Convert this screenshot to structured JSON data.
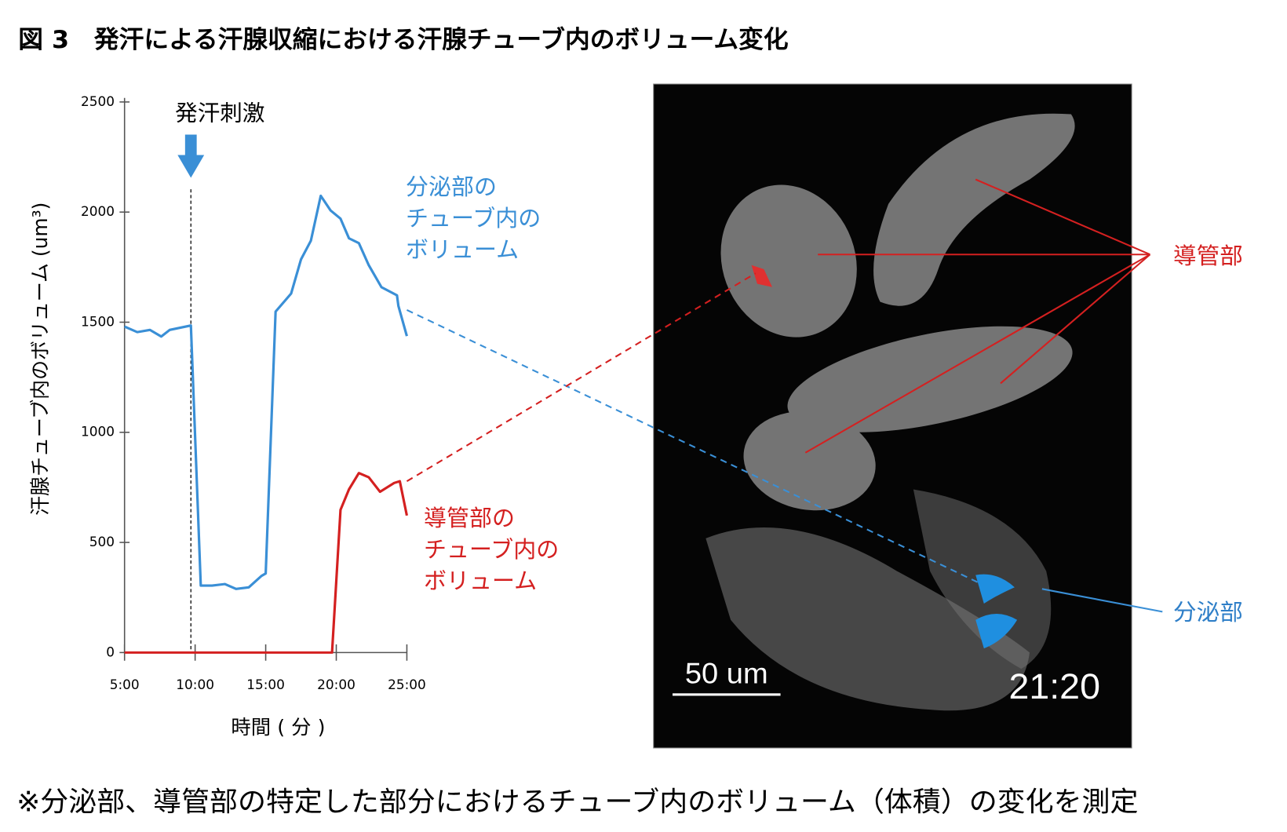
{
  "chart_data": {
    "type": "line",
    "title": "図 3　発汗による汗腺収縮における汗腺チューブ内のボリューム変化",
    "x_label": "時間 ( 分 )",
    "y_label": "汗腺チューブ内のボリューム (um³)",
    "xlim": [
      5,
      25
    ],
    "xticks": [
      {
        "value": 5,
        "label": "5:00"
      },
      {
        "value": 10,
        "label": "10:00"
      },
      {
        "value": 15,
        "label": "15:00"
      },
      {
        "value": 20,
        "label": "20:00"
      },
      {
        "value": 25,
        "label": "25:00"
      }
    ],
    "ylim": [
      0,
      2500
    ],
    "yticks": [
      0,
      500,
      1000,
      1500,
      2000,
      2500
    ],
    "annotation": {
      "text": "発汗刺激",
      "x": 9.7
    },
    "series": [
      {
        "name": "分泌部の\nチューブ内の\nボリューム",
        "color": "#3a8fd6",
        "x": [
          5,
          5.9,
          6.8,
          7.6,
          8.2,
          9.7,
          10.4,
          11.2,
          12.1,
          12.9,
          13.8,
          14.7,
          15,
          15.7,
          16.8,
          17.5,
          18.2,
          18.9,
          19.6,
          20.3,
          20.9,
          21.6,
          22.3,
          23.2,
          24.3,
          24.4,
          25
        ],
        "values": [
          1480,
          1455,
          1465,
          1435,
          1465,
          1485,
          304,
          304,
          311,
          289,
          296,
          348,
          359,
          1548,
          1630,
          1785,
          1870,
          2074,
          2007,
          1970,
          1881,
          1859,
          1759,
          1659,
          1622,
          1574,
          1437
        ]
      },
      {
        "name": "導管部の\nチューブ内の\nボリューム",
        "color": "#d42020",
        "x": [
          5,
          19.7,
          20.3,
          20.9,
          21.6,
          22.3,
          23.1,
          24.1,
          24.5,
          25
        ],
        "values": [
          0,
          0,
          648,
          741,
          815,
          796,
          730,
          770,
          778,
          622
        ]
      }
    ],
    "image": {
      "labels": {
        "duct": "導管部",
        "secretory": "分泌部",
        "scale_bar": "50 um",
        "timestamp": "21:20"
      }
    },
    "footnote": "※分泌部、導管部の特定した部分におけるチューブ内のボリューム（体積）の変化を測定"
  }
}
